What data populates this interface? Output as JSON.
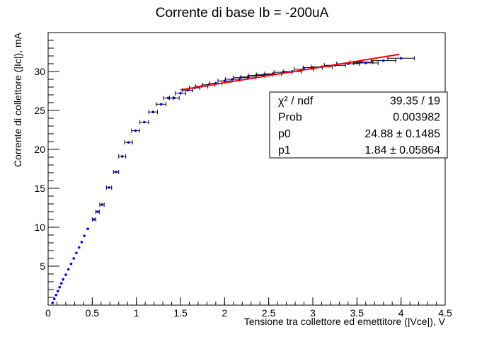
{
  "chart_data": {
    "type": "scatter",
    "title": "Corrente di base Ib = -200uA",
    "xlabel": "Tensione tra collettore ed emettitore (|Vce|), V",
    "ylabel": "Corrente di collettore (|Ic|), mA",
    "xlim": [
      0,
      4.5
    ],
    "ylim": [
      0,
      35
    ],
    "x_ticks": [
      "0",
      "0.5",
      "1",
      "1.5",
      "2",
      "2.5",
      "3",
      "3.5",
      "4",
      "4.5"
    ],
    "y_ticks": [
      "5",
      "10",
      "15",
      "20",
      "25",
      "30"
    ],
    "grid": false,
    "series": [
      {
        "color": "#0000ff",
        "error_bar_color": "#000000",
        "points": [
          {
            "x": 0.05,
            "y": 0.3
          },
          {
            "x": 0.07,
            "y": 0.8
          },
          {
            "x": 0.09,
            "y": 1.3
          },
          {
            "x": 0.11,
            "y": 1.8
          },
          {
            "x": 0.13,
            "y": 2.3
          },
          {
            "x": 0.15,
            "y": 2.8
          },
          {
            "x": 0.17,
            "y": 3.3
          },
          {
            "x": 0.2,
            "y": 3.9
          },
          {
            "x": 0.23,
            "y": 4.6
          },
          {
            "x": 0.26,
            "y": 5.3
          },
          {
            "x": 0.29,
            "y": 6.0
          },
          {
            "x": 0.32,
            "y": 6.7
          },
          {
            "x": 0.35,
            "y": 7.4
          },
          {
            "x": 0.38,
            "y": 8.1
          },
          {
            "x": 0.41,
            "y": 8.9
          },
          {
            "x": 0.45,
            "y": 9.8
          },
          {
            "x": 0.52,
            "y": 11.0,
            "xerr": 0.02
          },
          {
            "x": 0.56,
            "y": 12.0,
            "xerr": 0.02
          },
          {
            "x": 0.61,
            "y": 12.9,
            "xerr": 0.025
          },
          {
            "x": 0.69,
            "y": 15.1,
            "xerr": 0.03
          },
          {
            "x": 0.77,
            "y": 17.1,
            "xerr": 0.03
          },
          {
            "x": 0.84,
            "y": 19.1,
            "xerr": 0.04
          },
          {
            "x": 0.91,
            "y": 20.9,
            "xerr": 0.045
          },
          {
            "x": 0.99,
            "y": 22.4,
            "xerr": 0.045
          },
          {
            "x": 1.09,
            "y": 23.5,
            "xerr": 0.05
          },
          {
            "x": 1.19,
            "y": 24.8,
            "xerr": 0.05
          },
          {
            "x": 1.28,
            "y": 25.8,
            "xerr": 0.055
          },
          {
            "x": 1.36,
            "y": 26.6,
            "xerr": 0.055
          },
          {
            "x": 1.43,
            "y": 26.6,
            "xerr": 0.055
          },
          {
            "x": 1.5,
            "y": 27.2,
            "xerr": 0.06
          },
          {
            "x": 1.58,
            "y": 27.6,
            "xerr": 0.06
          },
          {
            "x": 1.66,
            "y": 27.9,
            "xerr": 0.06
          },
          {
            "x": 1.74,
            "y": 28.1,
            "xerr": 0.07
          },
          {
            "x": 1.82,
            "y": 28.3,
            "xerr": 0.07
          },
          {
            "x": 1.9,
            "y": 28.5,
            "xerr": 0.07
          },
          {
            "x": 2.0,
            "y": 28.8,
            "xerr": 0.075
          },
          {
            "x": 2.09,
            "y": 29.0,
            "xerr": 0.08
          },
          {
            "x": 2.18,
            "y": 29.2,
            "xerr": 0.08
          },
          {
            "x": 2.27,
            "y": 29.3,
            "xerr": 0.085
          },
          {
            "x": 2.36,
            "y": 29.5,
            "xerr": 0.09
          },
          {
            "x": 2.45,
            "y": 29.6,
            "xerr": 0.09
          },
          {
            "x": 2.55,
            "y": 29.7,
            "xerr": 0.095
          },
          {
            "x": 2.66,
            "y": 29.9,
            "xerr": 0.1
          },
          {
            "x": 2.77,
            "y": 30.0,
            "xerr": 0.1
          },
          {
            "x": 2.9,
            "y": 30.3,
            "xerr": 0.11
          },
          {
            "x": 3.0,
            "y": 30.5,
            "xerr": 0.11
          },
          {
            "x": 3.1,
            "y": 30.6,
            "xerr": 0.12
          },
          {
            "x": 3.25,
            "y": 30.8,
            "xerr": 0.12
          },
          {
            "x": 3.4,
            "y": 31.0,
            "xerr": 0.13
          },
          {
            "x": 3.55,
            "y": 31.2,
            "xerr": 0.13
          },
          {
            "x": 3.6,
            "y": 31.1,
            "xerr": 0.14
          },
          {
            "x": 3.8,
            "y": 31.4,
            "xerr": 0.14
          },
          {
            "x": 4.0,
            "y": 31.7,
            "xerr": 0.15
          }
        ]
      }
    ],
    "fit": {
      "color": "#ff0000",
      "x_range": [
        1.5,
        3.98
      ],
      "p0": 24.88,
      "p1": 1.84
    },
    "stats_box": {
      "rows": [
        {
          "label": "χ² / ndf",
          "value": "39.35 / 19"
        },
        {
          "label": "Prob",
          "value": "0.003982"
        },
        {
          "label": "p0",
          "value": "24.88 ± 0.1485"
        },
        {
          "label": "p1",
          "value": "1.84 ± 0.05864"
        }
      ]
    }
  }
}
